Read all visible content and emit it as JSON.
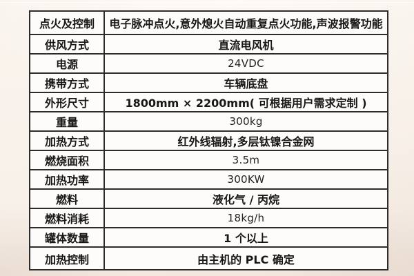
{
  "colors": {
    "page_background": "#f8f1ea",
    "cell_background": "#fdfcfb",
    "table_border": "#2e2b29",
    "text": "#191715"
  },
  "table": {
    "rows": [
      {
        "label": "点火及控制",
        "value": "电子脉冲点火,意外熄火自动重复点火功能,声波报警功能"
      },
      {
        "label": "供风方式",
        "value": "直流电风机"
      },
      {
        "label": "电源",
        "value": "24VDC"
      },
      {
        "label": "携带方式",
        "value": "车辆底盘"
      },
      {
        "label": "外形尺寸",
        "value": "1800mm × 2200mm( 可根据用户需求定制 )"
      },
      {
        "label": "重量",
        "value": "300kg"
      },
      {
        "label": "加热方式",
        "value": "红外线辐射,多层钛镍合金网"
      },
      {
        "label": "燃烧面积",
        "value": "3.5m"
      },
      {
        "label": "加热功率",
        "value": "300KW"
      },
      {
        "label": "燃料",
        "value": "液化气 / 丙烷"
      },
      {
        "label": "燃料消耗",
        "value": "18kg/h"
      },
      {
        "label": "罐体数量",
        "value": "1 个以上"
      },
      {
        "label": "加热控制",
        "value": "由主机的 PLC 确定"
      }
    ]
  }
}
